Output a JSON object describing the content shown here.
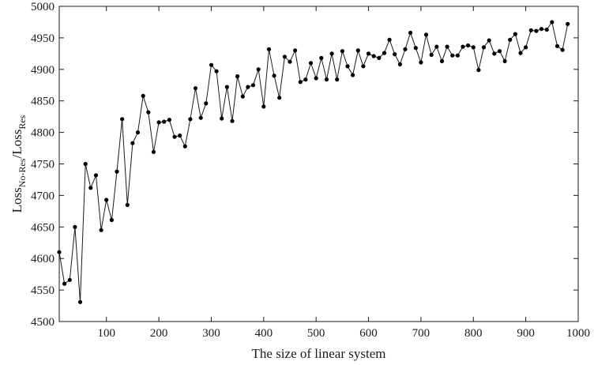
{
  "chart_data": {
    "type": "line",
    "title": "",
    "xlabel": "The  size of linear system",
    "ylabel": {
      "base": "Loss",
      "num_sub": "No-Res",
      "sep": "/",
      "den_base": "Loss",
      "den_sub": "Res"
    },
    "xlim": [
      10,
      1000
    ],
    "ylim": [
      4500,
      5000
    ],
    "xticks": [
      100,
      200,
      300,
      400,
      500,
      600,
      700,
      800,
      900,
      1000
    ],
    "yticks": [
      4500,
      4550,
      4600,
      4650,
      4700,
      4750,
      4800,
      4850,
      4900,
      4950,
      5000
    ],
    "grid": false,
    "legend": "none",
    "line_color": "#1a1a1a",
    "marker_color": "#000000",
    "series": [
      {
        "x": [
          10,
          20,
          30,
          40,
          50,
          60,
          70,
          80,
          90,
          100,
          110,
          120,
          130,
          140,
          150,
          160,
          170,
          180,
          190,
          200,
          210,
          220,
          230,
          240,
          250,
          260,
          270,
          280,
          290,
          300,
          310,
          320,
          330,
          340,
          350,
          360,
          370,
          380,
          390,
          400,
          410,
          420,
          430,
          440,
          450,
          460,
          470,
          480,
          490,
          500,
          510,
          520,
          530,
          540,
          550,
          560,
          570,
          580,
          590,
          600,
          610,
          620,
          630,
          640,
          650,
          660,
          670,
          680,
          690,
          700,
          710,
          720,
          730,
          740,
          750,
          760,
          770,
          780,
          790,
          800,
          810,
          820,
          830,
          840,
          850,
          860,
          870,
          880,
          890,
          900,
          910,
          920,
          930,
          940,
          950,
          960,
          970,
          980,
          990
        ],
        "y": [
          4610,
          4560,
          4566,
          4650,
          4531,
          4750,
          4712,
          4732,
          4645,
          4693,
          4661,
          4738,
          4821,
          4685,
          4783,
          4800,
          4858,
          4832,
          4769,
          4816,
          4817,
          4820,
          4793,
          4795,
          4778,
          4821,
          4870,
          4823,
          4846,
          4907,
          4897,
          4822,
          4872,
          4818,
          4889,
          4857,
          4872,
          4875,
          4900,
          4841,
          4932,
          4890,
          4855,
          4920,
          4912,
          4930,
          4880,
          4884,
          4910,
          4886,
          4918,
          4884,
          4925,
          4884,
          4929,
          4905,
          4891,
          4930,
          4905,
          4925,
          4921,
          4918,
          4926,
          4947,
          4924,
          4908,
          4932,
          4958,
          4934,
          4911,
          4955,
          4923,
          4936,
          4913,
          4936,
          4922,
          4922,
          4936,
          4938,
          4935,
          4899,
          4935,
          4946,
          4925,
          4929,
          4913,
          4947,
          4956,
          4926,
          4935,
          4962,
          4961,
          4964,
          4963,
          4975,
          4937,
          4931,
          4972,
          null
        ]
      }
    ]
  }
}
